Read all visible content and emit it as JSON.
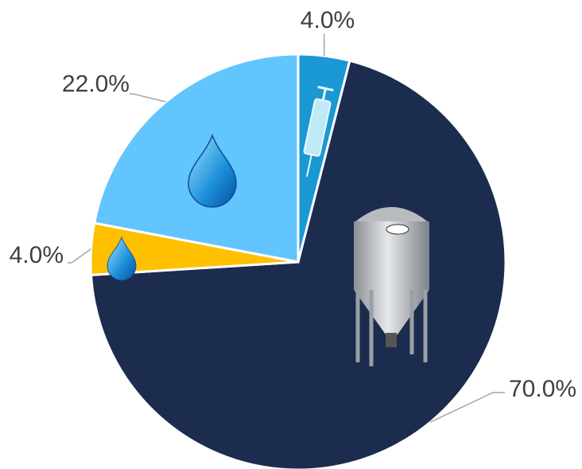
{
  "chart_data": {
    "type": "pie",
    "values": [
      4.0,
      70.0,
      4.0,
      22.0
    ],
    "value_labels": [
      "4.0%",
      "70.0%",
      "4.0%",
      "22.0%"
    ],
    "colors": [
      "#1a98d4",
      "#1c2c4f",
      "#ffc000",
      "#62c5fe"
    ]
  }
}
